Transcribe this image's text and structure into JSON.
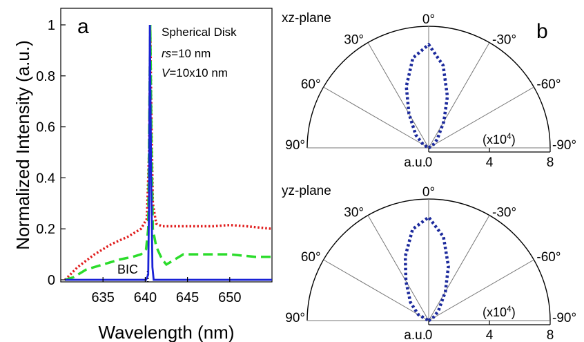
{
  "colors": {
    "blue": "#1a22d6",
    "green": "#2bdc2b",
    "red": "#e01c1c",
    "polar_blue": "#1c2a9c",
    "legend_blue": "#1f7fd1",
    "legend_green": "#18a84a",
    "legend_red": "#e01c1c"
  },
  "chart_data": [
    {
      "type": "line",
      "panel_label": "a",
      "xlabel": "Wavelength (nm)",
      "ylabel": "Normalized Intensity (a.u.)",
      "xlim": [
        630,
        655
      ],
      "ylim": [
        0,
        1
      ],
      "xticks": [
        "635",
        "640",
        "645",
        "650"
      ],
      "yticks": [
        "0",
        "0.2",
        "0.4",
        "0.6",
        "0.8",
        "1"
      ],
      "legend": {
        "line1": "Spherical Disk",
        "line2_italic": "rs",
        "line2_rest": "=10 nm",
        "line3_italic": "V",
        "line3_rest": "=10x10 nm"
      },
      "annotation": {
        "text": "BIC",
        "x": 640.3
      },
      "series": [
        {
          "color": "#1a22d6",
          "style": "solid",
          "points": [
            [
              630.5,
              0
            ],
            [
              640.1,
              0
            ],
            [
              640.35,
              0.02
            ],
            [
              640.45,
              0.3
            ],
            [
              640.55,
              1.0
            ],
            [
              640.7,
              0.4
            ],
            [
              640.85,
              0.05
            ],
            [
              641.0,
              0
            ],
            [
              655,
              0
            ]
          ]
        },
        {
          "color": "#2bdc2b",
          "style": "dashed",
          "points": [
            [
              630.5,
              0
            ],
            [
              631.5,
              0.01
            ],
            [
              633,
              0.04
            ],
            [
              635,
              0.06
            ],
            [
              637,
              0.08
            ],
            [
              638.5,
              0.09
            ],
            [
              639.5,
              0.1
            ],
            [
              640.1,
              0.12
            ],
            [
              640.35,
              0.2
            ],
            [
              640.5,
              0.7
            ],
            [
              640.6,
              1.0
            ],
            [
              640.75,
              0.5
            ],
            [
              640.9,
              0.2
            ],
            [
              641.3,
              0.13
            ],
            [
              642,
              0.08
            ],
            [
              642.5,
              0.06
            ],
            [
              643.5,
              0.08
            ],
            [
              644.5,
              0.1
            ],
            [
              647,
              0.1
            ],
            [
              650,
              0.1
            ],
            [
              653,
              0.09
            ],
            [
              655,
              0.09
            ]
          ]
        },
        {
          "color": "#e01c1c",
          "style": "dotted",
          "points": [
            [
              630.5,
              0
            ],
            [
              632,
              0.05
            ],
            [
              634,
              0.1
            ],
            [
              636,
              0.14
            ],
            [
              638,
              0.17
            ],
            [
              639.5,
              0.2
            ],
            [
              640.2,
              0.24
            ],
            [
              640.45,
              0.5
            ],
            [
              640.6,
              0.98
            ],
            [
              640.75,
              0.6
            ],
            [
              640.9,
              0.3
            ],
            [
              641.3,
              0.22
            ],
            [
              642,
              0.21
            ],
            [
              645,
              0.21
            ],
            [
              648,
              0.21
            ],
            [
              650,
              0.215
            ],
            [
              652,
              0.21
            ],
            [
              655,
              0.2
            ]
          ]
        }
      ]
    },
    {
      "type": "scatter",
      "subtype": "polar",
      "panel_label": "b",
      "plane": "xz-plane",
      "rlim": [
        0,
        8
      ],
      "r_tick_labels": [
        "0",
        "4",
        "8"
      ],
      "r_unit_label": "a.u.",
      "scale_label": "(x10",
      "scale_exp": "4",
      "scale_close": ")",
      "angle_labels": [
        "0°",
        "30°",
        "-30°",
        "60°",
        "-60°",
        "90°",
        "-90°"
      ],
      "pattern_color": "#1c2a9c",
      "pattern": [
        [
          -90,
          0
        ],
        [
          -60,
          0.3
        ],
        [
          -45,
          0.8
        ],
        [
          -30,
          2.0
        ],
        [
          -20,
          3.6
        ],
        [
          -10,
          5.5
        ],
        [
          0,
          6.8
        ],
        [
          10,
          6.0
        ],
        [
          20,
          4.3
        ],
        [
          30,
          2.6
        ],
        [
          45,
          1.2
        ],
        [
          60,
          0.4
        ],
        [
          90,
          0
        ]
      ]
    },
    {
      "type": "scatter",
      "subtype": "polar",
      "plane": "yz-plane",
      "rlim": [
        0,
        8
      ],
      "r_tick_labels": [
        "0",
        "4",
        "8"
      ],
      "r_unit_label": "a.u.",
      "scale_label": "(x10",
      "scale_exp": "4",
      "scale_close": ")",
      "angle_labels": [
        "0°",
        "30°",
        "-30°",
        "60°",
        "-60°",
        "90°",
        "-90°"
      ],
      "pattern_color": "#1c2a9c",
      "pattern": [
        [
          -90,
          0
        ],
        [
          -60,
          0.3
        ],
        [
          -45,
          0.9
        ],
        [
          -30,
          2.2
        ],
        [
          -20,
          3.8
        ],
        [
          -10,
          5.6
        ],
        [
          0,
          6.8
        ],
        [
          10,
          6.1
        ],
        [
          20,
          4.5
        ],
        [
          30,
          3.0
        ],
        [
          45,
          1.7
        ],
        [
          60,
          0.8
        ],
        [
          90,
          0
        ]
      ]
    }
  ]
}
